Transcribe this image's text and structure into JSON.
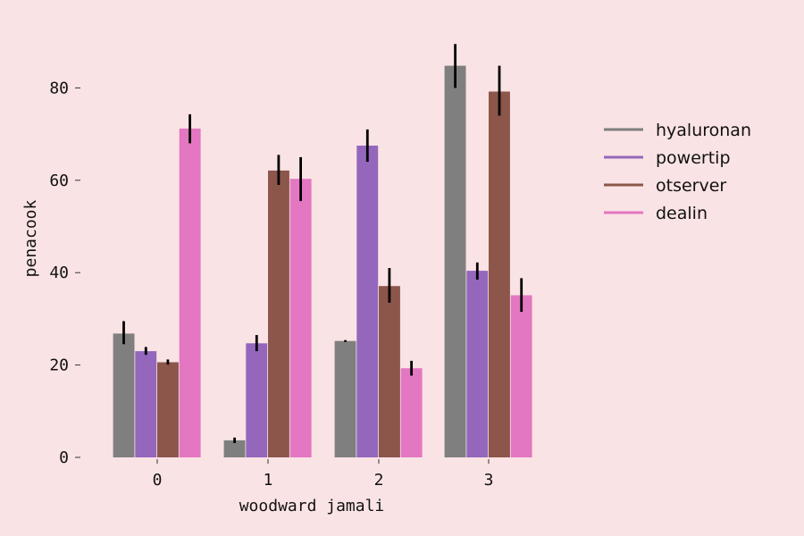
{
  "chart_data": {
    "type": "bar",
    "xlabel": "woodward jamali",
    "ylabel": "penacook",
    "categories": [
      "0",
      "1",
      "2",
      "3"
    ],
    "ylim": [
      0,
      90
    ],
    "yticks": [
      0,
      20,
      40,
      60,
      80
    ],
    "grid": false,
    "legend_position": "right",
    "series": [
      {
        "name": "hyaluronan",
        "color": "#7f7f7f",
        "values": [
          26.8,
          3.7,
          25.2,
          84.8
        ],
        "err": [
          [
            24.5,
            29.5
          ],
          [
            3.1,
            4.3
          ],
          [
            25.0,
            25.4
          ],
          [
            80.0,
            89.5
          ]
        ]
      },
      {
        "name": "powertip",
        "color": "#9467bd",
        "values": [
          23.0,
          24.7,
          67.5,
          40.4
        ],
        "err": [
          [
            22.2,
            23.9
          ],
          [
            23.0,
            26.5
          ],
          [
            64.0,
            71.0
          ],
          [
            38.5,
            42.2
          ]
        ]
      },
      {
        "name": "otserver",
        "color": "#8c564b",
        "values": [
          20.6,
          62.1,
          37.1,
          79.2
        ],
        "err": [
          [
            20.1,
            21.2
          ],
          [
            59.0,
            65.5
          ],
          [
            33.5,
            41.0
          ],
          [
            74.0,
            84.8
          ]
        ]
      },
      {
        "name": "dealin",
        "color": "#e377c2",
        "values": [
          71.2,
          60.3,
          19.3,
          35.1
        ],
        "err": [
          [
            68.0,
            74.3
          ],
          [
            55.5,
            65.0
          ],
          [
            17.7,
            20.9
          ],
          [
            31.5,
            38.8
          ]
        ]
      }
    ]
  }
}
